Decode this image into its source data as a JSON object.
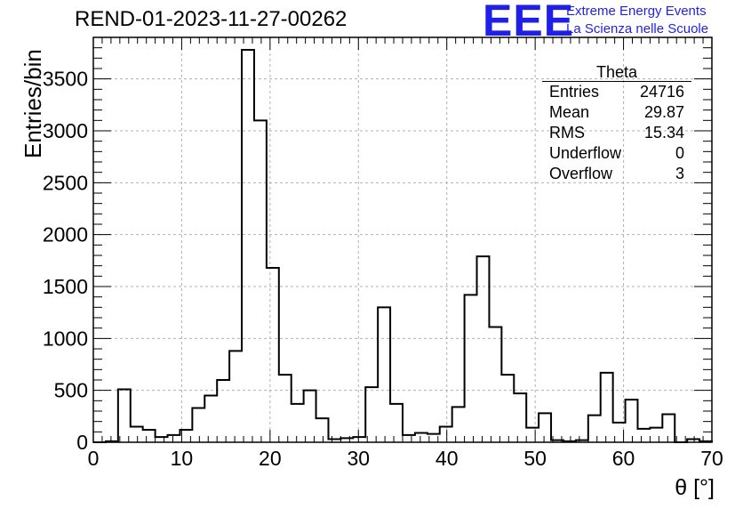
{
  "title": "REND-01-2023-11-27-00262",
  "logo": {
    "mark": "EEE",
    "line1": "Extreme Energy Events",
    "line2": "La Scienza nelle Scuole",
    "color": "#1f1fe8"
  },
  "stats_box": {
    "title": "Theta",
    "rows": [
      {
        "label": "Entries",
        "value": "24716"
      },
      {
        "label": "Mean",
        "value": "29.87"
      },
      {
        "label": "RMS",
        "value": "15.34"
      },
      {
        "label": "Underflow",
        "value": "0"
      },
      {
        "label": "Overflow",
        "value": "3"
      }
    ]
  },
  "chart_data": {
    "type": "bar",
    "style": "step-histogram",
    "xlabel": "θ [°]",
    "ylabel": "Entries/bin",
    "xlim": [
      0,
      70
    ],
    "ylim": [
      0,
      3900
    ],
    "bin_width": 1.4,
    "x_ticks": [
      0,
      10,
      20,
      30,
      40,
      50,
      60,
      70
    ],
    "y_ticks": [
      0,
      500,
      1000,
      1500,
      2000,
      2500,
      3000,
      3500
    ],
    "grid": true,
    "bin_edges_start": 0,
    "values": [
      0,
      10,
      510,
      150,
      120,
      50,
      70,
      120,
      330,
      450,
      600,
      880,
      3780,
      3100,
      1680,
      650,
      370,
      500,
      230,
      30,
      40,
      50,
      530,
      1300,
      370,
      70,
      90,
      80,
      150,
      340,
      1420,
      1790,
      1110,
      650,
      470,
      140,
      280,
      20,
      10,
      20,
      260,
      670,
      190,
      410,
      130,
      140,
      270,
      0,
      30,
      10
    ],
    "line_color": "#000000",
    "grid_color": "#b0b0b0"
  }
}
